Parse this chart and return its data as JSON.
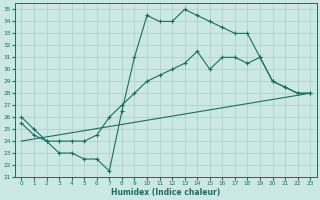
{
  "xlabel": "Humidex (Indice chaleur)",
  "bg_color": "#cce8e4",
  "line_color": "#1a6e60",
  "grid_color": "#aacfca",
  "xlim": [
    -0.5,
    23.5
  ],
  "ylim": [
    21,
    35.5
  ],
  "xticks": [
    0,
    1,
    2,
    3,
    4,
    5,
    6,
    7,
    8,
    9,
    10,
    11,
    12,
    13,
    14,
    15,
    16,
    17,
    18,
    19,
    20,
    21,
    22,
    23
  ],
  "yticks": [
    21,
    22,
    23,
    24,
    25,
    26,
    27,
    28,
    29,
    30,
    31,
    32,
    33,
    34,
    35
  ],
  "line1_x": [
    0,
    1,
    2,
    3,
    4,
    5,
    6,
    7,
    8,
    9,
    10,
    11,
    12,
    13,
    14,
    15,
    16,
    17,
    18,
    19,
    20,
    21,
    22,
    23
  ],
  "line1_y": [
    26.0,
    25.0,
    24.0,
    23.0,
    23.0,
    22.5,
    22.5,
    21.5,
    26.5,
    31.0,
    34.5,
    34.0,
    34.0,
    35.0,
    34.5,
    34.0,
    33.5,
    33.0,
    33.0,
    31.0,
    29.0,
    28.5,
    28.0,
    28.0
  ],
  "line2_x": [
    0,
    1,
    2,
    3,
    4,
    5,
    6,
    7,
    8,
    9,
    10,
    11,
    12,
    13,
    14,
    15,
    16,
    17,
    18,
    19,
    20,
    21,
    22,
    23
  ],
  "line2_y": [
    25.5,
    24.5,
    24.0,
    24.0,
    24.0,
    24.0,
    24.5,
    26.0,
    27.0,
    28.0,
    29.0,
    29.5,
    30.0,
    30.5,
    31.5,
    30.0,
    31.0,
    31.0,
    30.5,
    31.0,
    29.0,
    28.5,
    28.0,
    28.0
  ],
  "line3_x": [
    0,
    23
  ],
  "line3_y": [
    24.0,
    28.0
  ]
}
